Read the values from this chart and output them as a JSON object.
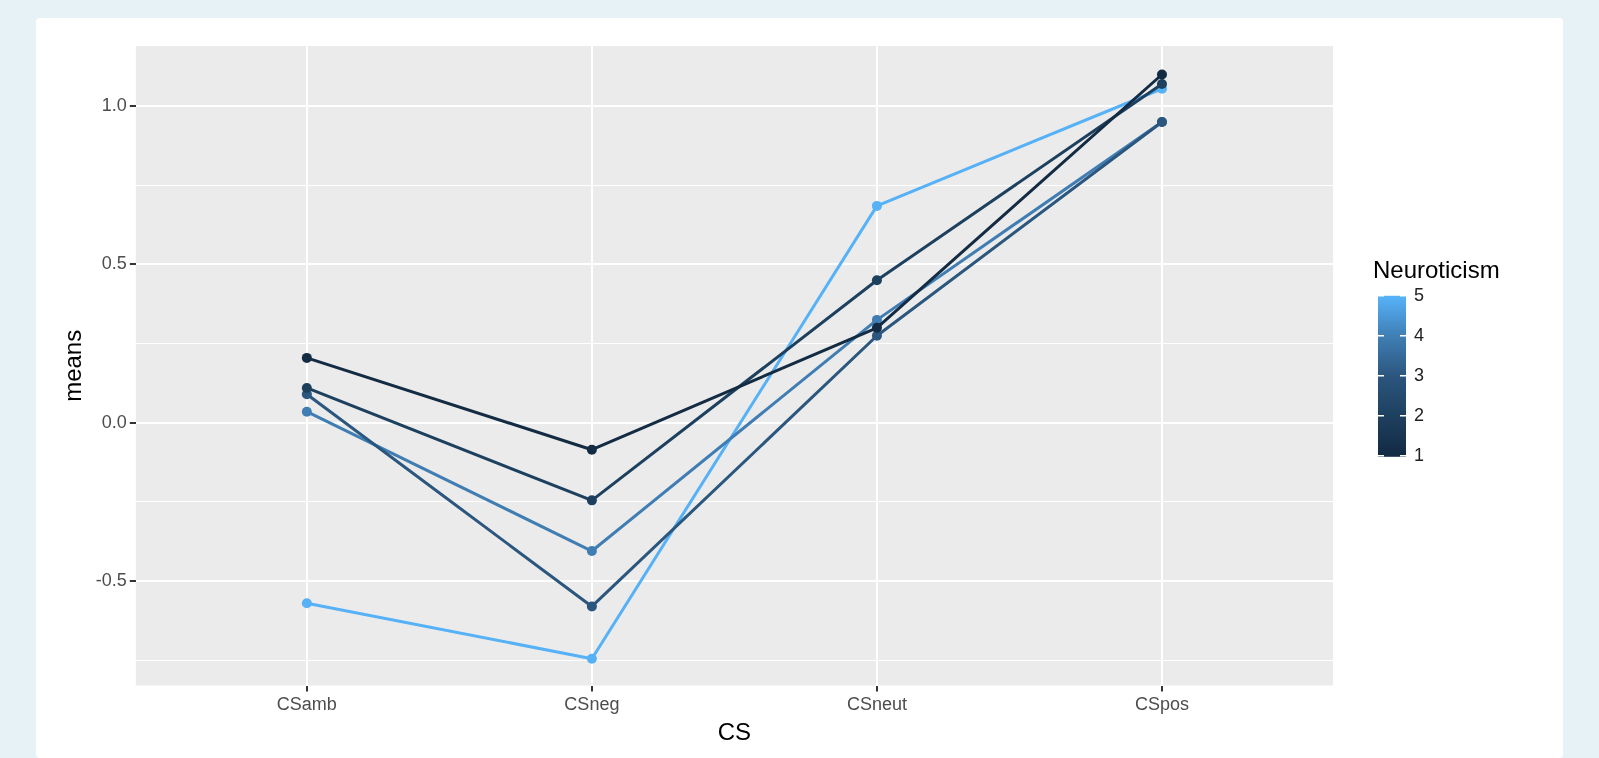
{
  "chart_data": {
    "type": "line",
    "xlabel": "CS",
    "ylabel": "means",
    "legend_title": "Neuroticism",
    "categories": [
      "CSamb",
      "CSneg",
      "CSneut",
      "CSpos"
    ],
    "series": [
      {
        "color": "#132b43",
        "values": [
          0.205,
          -0.085,
          0.3,
          1.1
        ]
      },
      {
        "color": "#1e405f",
        "values": [
          0.11,
          -0.245,
          0.45,
          1.07
        ]
      },
      {
        "color": "#2b567e",
        "values": [
          0.09,
          -0.58,
          0.275,
          0.95
        ]
      },
      {
        "color": "#3f7db3",
        "values": [
          0.035,
          -0.405,
          0.325,
          0.95
        ]
      },
      {
        "color": "#56b1f7",
        "values": [
          -0.57,
          -0.745,
          0.685,
          1.055
        ]
      }
    ],
    "ylim": [
      -0.83,
      1.19
    ],
    "yticks": [
      {
        "value": -0.75,
        "label": null
      },
      {
        "value": -0.5,
        "label": "-0.5"
      },
      {
        "value": -0.25,
        "label": null
      },
      {
        "value": 0,
        "label": "0.0"
      },
      {
        "value": 0.25,
        "label": null
      },
      {
        "value": 0.5,
        "label": "0.5"
      },
      {
        "value": 0.75,
        "label": null
      },
      {
        "value": 1,
        "label": "1.0"
      }
    ],
    "clim": [
      1,
      5
    ],
    "cticks": [
      1,
      2,
      3,
      4,
      5
    ],
    "grid": true,
    "marker": "circle",
    "line_style": "solid"
  }
}
